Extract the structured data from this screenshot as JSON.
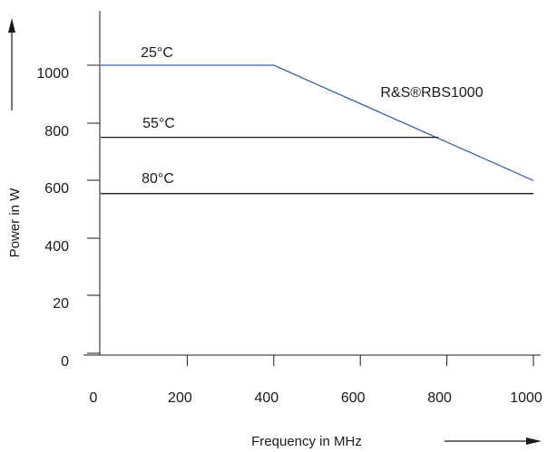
{
  "chart_data": {
    "type": "line",
    "xlabel": "Frequency in MHz",
    "ylabel": "Power in W",
    "xlim": [
      0,
      1000
    ],
    "x_ticks": [
      0,
      200,
      400,
      600,
      800,
      1000
    ],
    "x_tick_labels": [
      "0",
      "200",
      "400",
      "600",
      "800",
      "1000"
    ],
    "y_tick_labels": [
      "1000",
      "800",
      "600",
      "400",
      "20",
      "0"
    ],
    "grid": false,
    "series": [
      {
        "name": "25°C",
        "color": "#3b5ea8",
        "points": [
          [
            0,
            1000
          ],
          [
            400,
            1000
          ],
          [
            1000,
            600
          ]
        ]
      },
      {
        "name": "55°C",
        "color": "#1a1a1a",
        "points": [
          [
            0,
            750
          ],
          [
            780,
            750
          ]
        ]
      },
      {
        "name": "80°C",
        "color": "#1a1a1a",
        "points": [
          [
            0,
            555
          ],
          [
            1000,
            555
          ]
        ]
      }
    ],
    "annotations": [
      {
        "text": "R&S®RBS1000"
      }
    ]
  }
}
